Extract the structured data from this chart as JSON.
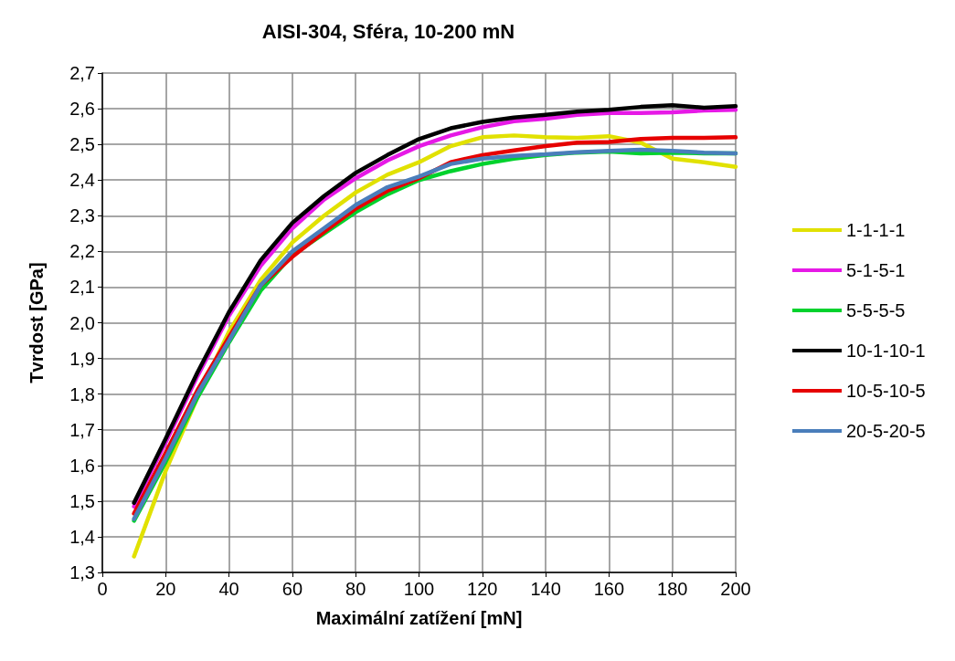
{
  "chart_data": {
    "type": "line",
    "title": "AISI-304, Sféra, 10-200 mN",
    "xlabel": "Maximální zatížení [mN]",
    "ylabel": "Tvrdost [GPa]",
    "x": [
      10,
      20,
      30,
      40,
      50,
      60,
      70,
      80,
      90,
      100,
      110,
      120,
      130,
      140,
      150,
      160,
      170,
      180,
      190,
      200
    ],
    "series": [
      {
        "name": "1-1-1-1",
        "color": "#e1e100",
        "values": [
          1.345,
          1.585,
          1.79,
          1.975,
          2.12,
          2.225,
          2.3,
          2.365,
          2.415,
          2.45,
          2.495,
          2.52,
          2.525,
          2.52,
          2.518,
          2.523,
          2.505,
          2.46,
          2.45,
          2.437
        ]
      },
      {
        "name": "5-1-5-1",
        "color": "#e619e6",
        "values": [
          1.485,
          1.665,
          1.85,
          2.02,
          2.16,
          2.265,
          2.345,
          2.405,
          2.455,
          2.495,
          2.525,
          2.548,
          2.565,
          2.572,
          2.583,
          2.588,
          2.588,
          2.59,
          2.595,
          2.597
        ]
      },
      {
        "name": "5-5-5-5",
        "color": "#00d22d",
        "values": [
          1.445,
          1.61,
          1.79,
          1.945,
          2.09,
          2.19,
          2.25,
          2.31,
          2.36,
          2.4,
          2.425,
          2.445,
          2.46,
          2.47,
          2.477,
          2.48,
          2.475,
          2.477,
          2.475,
          2.475
        ]
      },
      {
        "name": "10-1-10-1",
        "color": "#000000",
        "values": [
          1.495,
          1.675,
          1.86,
          2.03,
          2.175,
          2.28,
          2.355,
          2.42,
          2.47,
          2.515,
          2.545,
          2.563,
          2.575,
          2.583,
          2.592,
          2.597,
          2.605,
          2.61,
          2.603,
          2.607
        ]
      },
      {
        "name": "10-5-10-5",
        "color": "#e60000",
        "values": [
          1.465,
          1.635,
          1.81,
          1.96,
          2.105,
          2.185,
          2.255,
          2.32,
          2.37,
          2.405,
          2.45,
          2.47,
          2.483,
          2.495,
          2.505,
          2.507,
          2.515,
          2.518,
          2.518,
          2.52
        ]
      },
      {
        "name": "20-5-20-5",
        "color": "#4a7ebb",
        "values": [
          1.45,
          1.62,
          1.8,
          1.95,
          2.105,
          2.2,
          2.265,
          2.33,
          2.38,
          2.41,
          2.445,
          2.46,
          2.468,
          2.472,
          2.478,
          2.482,
          2.485,
          2.482,
          2.477,
          2.475
        ]
      }
    ],
    "xlim": [
      0,
      200
    ],
    "xticks": [
      0,
      20,
      40,
      60,
      80,
      100,
      120,
      140,
      160,
      180,
      200
    ],
    "ylim": [
      1.3,
      2.7
    ],
    "yticks": [
      {
        "value": 1.3,
        "label": "1,3"
      },
      {
        "value": 1.4,
        "label": "1,4"
      },
      {
        "value": 1.5,
        "label": "1,5"
      },
      {
        "value": 1.6,
        "label": "1,6"
      },
      {
        "value": 1.7,
        "label": "1,7"
      },
      {
        "value": 1.8,
        "label": "1,8"
      },
      {
        "value": 1.9,
        "label": "1,9"
      },
      {
        "value": 2.0,
        "label": "2,0"
      },
      {
        "value": 2.1,
        "label": "2,1"
      },
      {
        "value": 2.2,
        "label": "2,2"
      },
      {
        "value": 2.3,
        "label": "2,3"
      },
      {
        "value": 2.4,
        "label": "2,4"
      },
      {
        "value": 2.5,
        "label": "2,5"
      },
      {
        "value": 2.6,
        "label": "2,6"
      },
      {
        "value": 2.7,
        "label": "2,7"
      }
    ],
    "grid": true,
    "legend": "right",
    "marker": "none",
    "line_style": "solid"
  }
}
